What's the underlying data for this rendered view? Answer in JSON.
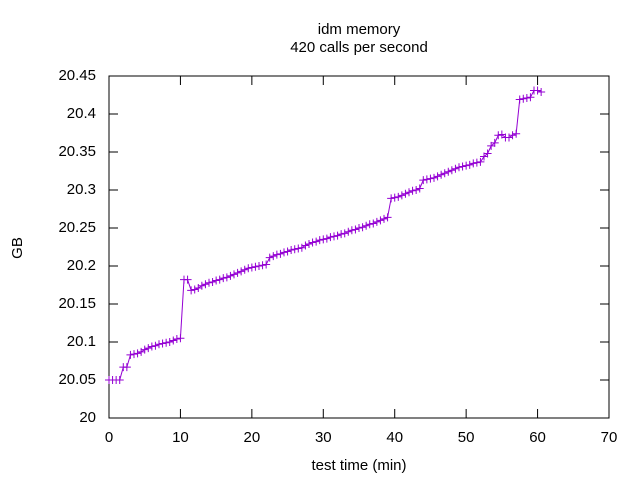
{
  "chart_data": {
    "type": "line",
    "title": "idm memory",
    "subtitle": "420 calls per second",
    "x_label": "test time (min)",
    "y_label": "GB",
    "color": "#9400d3",
    "xlim": [
      0,
      70
    ],
    "xticks": [
      0,
      10,
      20,
      30,
      40,
      50,
      60,
      70
    ],
    "ylim": [
      20,
      20.45
    ],
    "yticks": [
      20,
      20.05,
      20.1,
      20.15,
      20.2,
      20.25,
      20.3,
      20.35,
      20.4,
      20.45
    ],
    "x": [
      0,
      0.5,
      1,
      1.5,
      2,
      2.5,
      3,
      3.5,
      4,
      4.5,
      5,
      5.5,
      6,
      6.5,
      7,
      7.5,
      8,
      8.5,
      9,
      9.5,
      10,
      10.5,
      11,
      11.5,
      12,
      12.5,
      13,
      13.5,
      14,
      14.5,
      15,
      15.5,
      16,
      16.5,
      17,
      17.5,
      18,
      18.5,
      19,
      19.5,
      20,
      20.5,
      21,
      21.5,
      22,
      22.5,
      23,
      23.5,
      24,
      24.5,
      25,
      25.5,
      26,
      26.5,
      27,
      27.5,
      28,
      28.5,
      29,
      29.5,
      30,
      30.5,
      31,
      31.5,
      32,
      32.5,
      33,
      33.5,
      34,
      34.5,
      35,
      35.5,
      36,
      36.5,
      37,
      37.5,
      38,
      38.5,
      39,
      39.5,
      40,
      40.5,
      41,
      41.5,
      42,
      42.5,
      43,
      43.5,
      44,
      44.5,
      45,
      45.5,
      46,
      46.5,
      47,
      47.5,
      48,
      48.5,
      49,
      49.5,
      50,
      50.5,
      51,
      51.5,
      52,
      52.5,
      53,
      53.5,
      54,
      54.5,
      55,
      55.5,
      56,
      56.5,
      57,
      57.5,
      58,
      58.5,
      59,
      59.5,
      60,
      60.5
    ],
    "values": [
      20.05,
      20.05,
      20.05,
      20.05,
      20.067,
      20.067,
      20.083,
      20.084,
      20.085,
      20.087,
      20.09,
      20.092,
      20.094,
      20.095,
      20.097,
      20.098,
      20.099,
      20.1,
      20.102,
      20.104,
      20.105,
      20.182,
      20.182,
      20.168,
      20.169,
      20.171,
      20.174,
      20.176,
      20.178,
      20.179,
      20.181,
      20.182,
      20.184,
      20.185,
      20.187,
      20.189,
      20.191,
      20.193,
      20.195,
      20.197,
      20.198,
      20.199,
      20.2,
      20.201,
      20.202,
      20.211,
      20.213,
      20.215,
      20.216,
      20.218,
      20.219,
      20.221,
      20.222,
      20.223,
      20.224,
      20.227,
      20.229,
      20.231,
      20.232,
      20.234,
      20.235,
      20.236,
      20.238,
      20.239,
      20.24,
      20.242,
      20.243,
      20.245,
      20.247,
      20.248,
      20.25,
      20.251,
      20.253,
      20.255,
      20.256,
      20.258,
      20.26,
      20.262,
      20.264,
      20.289,
      20.29,
      20.291,
      20.293,
      20.295,
      20.297,
      20.299,
      20.3,
      20.302,
      20.313,
      20.314,
      20.315,
      20.316,
      20.318,
      20.32,
      20.322,
      20.324,
      20.326,
      20.328,
      20.33,
      20.331,
      20.332,
      20.333,
      20.335,
      20.336,
      20.337,
      20.344,
      20.348,
      20.358,
      20.362,
      20.372,
      20.373,
      20.369,
      20.369,
      20.372,
      20.374,
      20.419,
      20.42,
      20.421,
      20.422,
      20.431,
      20.431,
      20.429
    ]
  }
}
